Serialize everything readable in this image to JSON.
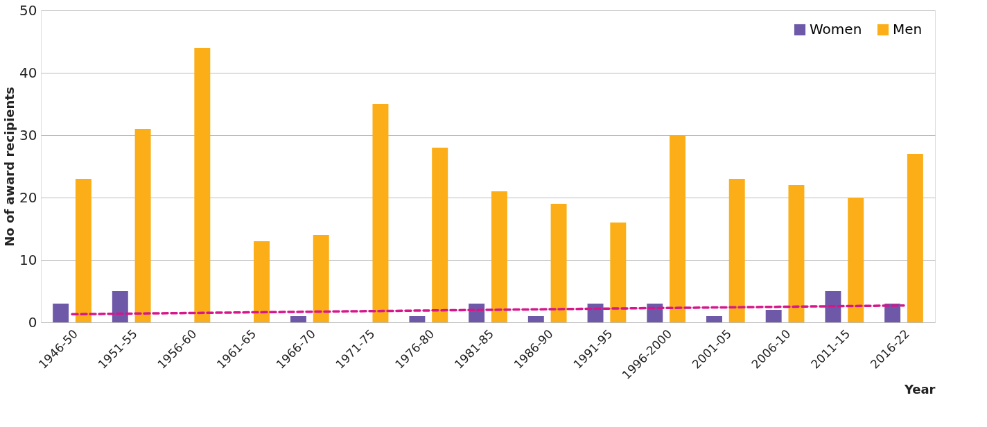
{
  "chart_data": {
    "type": "bar",
    "xlabel": "Year",
    "ylabel": "No of award recipients",
    "categories": [
      "1946-50",
      "1951-55",
      "1956-60",
      "1961-65",
      "1966-70",
      "1971-75",
      "1976-80",
      "1981-85",
      "1986-90",
      "1991-95",
      "1996-2000",
      "2001-05",
      "2006-10",
      "2011-15",
      "2016-22"
    ],
    "series": [
      {
        "name": "Women",
        "color": "#6e59a8",
        "values": [
          3,
          5,
          0,
          0,
          1,
          0,
          1,
          3,
          1,
          3,
          3,
          1,
          2,
          5,
          3
        ]
      },
      {
        "name": "Men",
        "color": "#fbae17",
        "values": [
          23,
          31,
          44,
          13,
          14,
          35,
          28,
          21,
          19,
          16,
          30,
          23,
          22,
          20,
          27
        ]
      },
      {
        "type": "line",
        "color": "#d6168b",
        "line_style": "dashed",
        "x": [
          "1946-50",
          "2016-22"
        ],
        "values": [
          1.3,
          2.7
        ]
      }
    ],
    "ylim": [
      0,
      50
    ],
    "yticks": [
      0,
      10,
      20,
      30,
      40,
      50
    ],
    "grid": "y",
    "legend": "top right"
  }
}
